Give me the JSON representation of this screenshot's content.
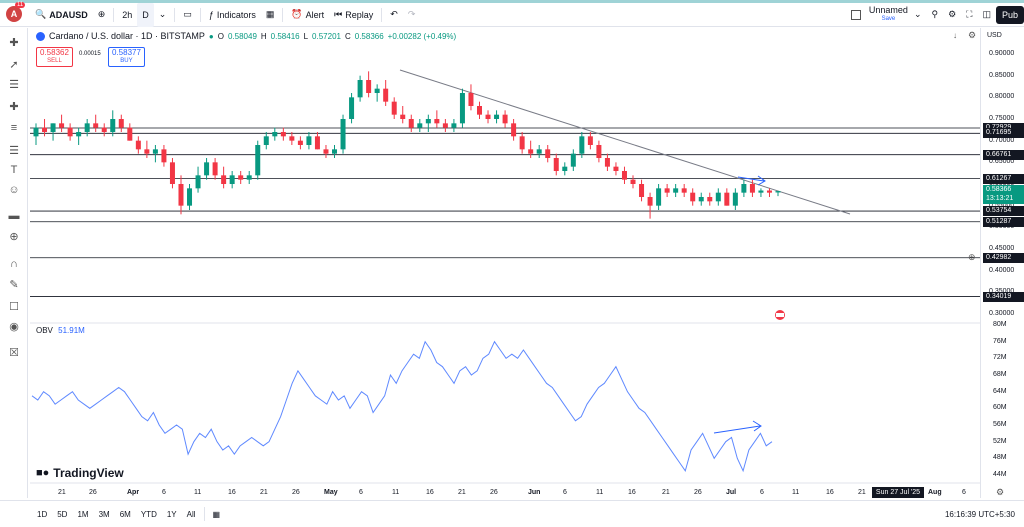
{
  "topbar": {
    "avatar_letter": "A",
    "badge": "11",
    "symbol": "ADAUSD",
    "interval_1": "2h",
    "interval_2": "D",
    "indicators": "Indicators",
    "alert": "Alert",
    "replay": "Replay",
    "layout_name": "Unnamed",
    "save_label": "Save",
    "publish": "Pub"
  },
  "legend": {
    "description": "Cardano / U.S. dollar · 1D · BITSTAMP",
    "o_label": "O",
    "o": "0.58049",
    "h_label": "H",
    "h": "0.58416",
    "l_label": "L",
    "l": "0.57201",
    "c_label": "C",
    "c": "0.58366",
    "change": "+0.00282 (+0.49%)"
  },
  "trade": {
    "sell_price": "0.58362",
    "sell_label": "SELL",
    "spread": "0.00015",
    "buy_price": "0.58377",
    "buy_label": "BUY"
  },
  "obv": {
    "label": "OBV",
    "value": "51.91M"
  },
  "branding": {
    "name": "TradingView"
  },
  "axis": {
    "currency": "USD",
    "price_ticks": [
      "0.90000",
      "0.85000",
      "0.80000",
      "0.75000",
      "0.70000",
      "0.65000",
      "0.60000",
      "0.55000",
      "0.50000",
      "0.45000",
      "0.40000",
      "0.35000",
      "0.30000"
    ],
    "obv_ticks": [
      "80M",
      "76M",
      "72M",
      "68M",
      "64M",
      "60M",
      "56M",
      "52M",
      "48M",
      "44M"
    ],
    "price_labels": [
      {
        "text": "0.72929",
        "kind": "level"
      },
      {
        "text": "0.71695",
        "kind": "level"
      },
      {
        "text": "0.66761",
        "kind": "level"
      },
      {
        "text": "0.61267",
        "kind": "level"
      },
      {
        "text": "0.58366",
        "kind": "last"
      },
      {
        "text": "13:13:21",
        "kind": "countdown"
      },
      {
        "text": "0.53754",
        "kind": "level"
      },
      {
        "text": "0.51287",
        "kind": "level"
      },
      {
        "text": "0.42982",
        "kind": "level"
      },
      {
        "text": "0.34019",
        "kind": "level"
      }
    ]
  },
  "xaxis": {
    "ticks": [
      "21",
      "26",
      "Apr",
      "6",
      "11",
      "16",
      "21",
      "26",
      "May",
      "6",
      "11",
      "16",
      "21",
      "26",
      "Jun",
      "6",
      "11",
      "16",
      "21",
      "26",
      "Jul",
      "6",
      "11",
      "16",
      "21",
      "26",
      "Aug",
      "6"
    ],
    "crosshair_date": "Sun 27 Jul '25"
  },
  "bottom": {
    "ranges": [
      "1D",
      "5D",
      "1M",
      "3M",
      "6M",
      "YTD",
      "1Y",
      "All"
    ],
    "clock": "16:16:39 UTC+5:30"
  },
  "colors": {
    "up": "#089981",
    "down": "#f23645",
    "obv": "#2962ff",
    "level": "#131722"
  },
  "chart_data": [
    {
      "type": "candlestick",
      "title": "Cardano / U.S. dollar · 1D · BITSTAMP",
      "ylabel": "USD",
      "ylim": [
        0.28,
        0.92
      ],
      "horizontal_levels": [
        0.72929,
        0.71695,
        0.66761,
        0.61267,
        0.53754,
        0.51287,
        0.42982,
        0.34019
      ],
      "trendline": [
        0.87,
        0.51
      ],
      "ohlc": [
        [
          0.71,
          0.74,
          0.69,
          0.73
        ],
        [
          0.73,
          0.75,
          0.71,
          0.72
        ],
        [
          0.72,
          0.74,
          0.7,
          0.74
        ],
        [
          0.74,
          0.76,
          0.72,
          0.73
        ],
        [
          0.73,
          0.74,
          0.7,
          0.71
        ],
        [
          0.71,
          0.73,
          0.69,
          0.72
        ],
        [
          0.72,
          0.75,
          0.71,
          0.74
        ],
        [
          0.74,
          0.76,
          0.72,
          0.73
        ],
        [
          0.73,
          0.74,
          0.71,
          0.72
        ],
        [
          0.72,
          0.77,
          0.71,
          0.75
        ],
        [
          0.75,
          0.76,
          0.72,
          0.73
        ],
        [
          0.73,
          0.74,
          0.7,
          0.7
        ],
        [
          0.7,
          0.71,
          0.67,
          0.68
        ],
        [
          0.68,
          0.7,
          0.66,
          0.67
        ],
        [
          0.67,
          0.69,
          0.65,
          0.68
        ],
        [
          0.68,
          0.69,
          0.64,
          0.65
        ],
        [
          0.65,
          0.66,
          0.59,
          0.6
        ],
        [
          0.6,
          0.62,
          0.53,
          0.55
        ],
        [
          0.55,
          0.6,
          0.54,
          0.59
        ],
        [
          0.59,
          0.64,
          0.58,
          0.62
        ],
        [
          0.62,
          0.66,
          0.61,
          0.65
        ],
        [
          0.65,
          0.66,
          0.61,
          0.62
        ],
        [
          0.62,
          0.64,
          0.59,
          0.6
        ],
        [
          0.6,
          0.63,
          0.59,
          0.62
        ],
        [
          0.62,
          0.63,
          0.6,
          0.61
        ],
        [
          0.61,
          0.63,
          0.6,
          0.62
        ],
        [
          0.62,
          0.7,
          0.61,
          0.69
        ],
        [
          0.69,
          0.72,
          0.68,
          0.71
        ],
        [
          0.71,
          0.73,
          0.7,
          0.72
        ],
        [
          0.72,
          0.73,
          0.7,
          0.71
        ],
        [
          0.71,
          0.72,
          0.69,
          0.7
        ],
        [
          0.7,
          0.71,
          0.68,
          0.69
        ],
        [
          0.69,
          0.72,
          0.68,
          0.71
        ],
        [
          0.71,
          0.72,
          0.68,
          0.68
        ],
        [
          0.68,
          0.69,
          0.66,
          0.67
        ],
        [
          0.67,
          0.69,
          0.66,
          0.68
        ],
        [
          0.68,
          0.76,
          0.67,
          0.75
        ],
        [
          0.75,
          0.81,
          0.74,
          0.8
        ],
        [
          0.8,
          0.85,
          0.79,
          0.84
        ],
        [
          0.84,
          0.86,
          0.8,
          0.81
        ],
        [
          0.81,
          0.83,
          0.79,
          0.82
        ],
        [
          0.82,
          0.84,
          0.78,
          0.79
        ],
        [
          0.79,
          0.8,
          0.75,
          0.76
        ],
        [
          0.76,
          0.78,
          0.74,
          0.75
        ],
        [
          0.75,
          0.76,
          0.72,
          0.73
        ],
        [
          0.73,
          0.75,
          0.72,
          0.74
        ],
        [
          0.74,
          0.76,
          0.72,
          0.75
        ],
        [
          0.75,
          0.77,
          0.73,
          0.74
        ],
        [
          0.74,
          0.75,
          0.72,
          0.73
        ],
        [
          0.73,
          0.75,
          0.72,
          0.74
        ],
        [
          0.74,
          0.82,
          0.73,
          0.81
        ],
        [
          0.81,
          0.83,
          0.77,
          0.78
        ],
        [
          0.78,
          0.79,
          0.75,
          0.76
        ],
        [
          0.76,
          0.77,
          0.74,
          0.75
        ],
        [
          0.75,
          0.77,
          0.74,
          0.76
        ],
        [
          0.76,
          0.77,
          0.73,
          0.74
        ],
        [
          0.74,
          0.75,
          0.7,
          0.71
        ],
        [
          0.71,
          0.72,
          0.67,
          0.68
        ],
        [
          0.68,
          0.7,
          0.66,
          0.67
        ],
        [
          0.67,
          0.69,
          0.66,
          0.68
        ],
        [
          0.68,
          0.69,
          0.65,
          0.66
        ],
        [
          0.66,
          0.67,
          0.62,
          0.63
        ],
        [
          0.63,
          0.65,
          0.62,
          0.64
        ],
        [
          0.64,
          0.68,
          0.63,
          0.67
        ],
        [
          0.67,
          0.72,
          0.66,
          0.71
        ],
        [
          0.71,
          0.72,
          0.68,
          0.69
        ],
        [
          0.69,
          0.7,
          0.65,
          0.66
        ],
        [
          0.66,
          0.67,
          0.63,
          0.64
        ],
        [
          0.64,
          0.65,
          0.62,
          0.63
        ],
        [
          0.63,
          0.64,
          0.6,
          0.61
        ],
        [
          0.61,
          0.62,
          0.59,
          0.6
        ],
        [
          0.6,
          0.61,
          0.56,
          0.57
        ],
        [
          0.57,
          0.58,
          0.52,
          0.55
        ],
        [
          0.55,
          0.6,
          0.54,
          0.59
        ],
        [
          0.59,
          0.6,
          0.57,
          0.58
        ],
        [
          0.58,
          0.6,
          0.57,
          0.59
        ],
        [
          0.59,
          0.6,
          0.57,
          0.58
        ],
        [
          0.58,
          0.59,
          0.55,
          0.56
        ],
        [
          0.56,
          0.58,
          0.55,
          0.57
        ],
        [
          0.57,
          0.58,
          0.55,
          0.56
        ],
        [
          0.56,
          0.59,
          0.55,
          0.58
        ],
        [
          0.58,
          0.59,
          0.55,
          0.55
        ],
        [
          0.55,
          0.59,
          0.54,
          0.58
        ],
        [
          0.58,
          0.61,
          0.57,
          0.6
        ],
        [
          0.6,
          0.61,
          0.57,
          0.58
        ],
        [
          0.58,
          0.59,
          0.57,
          0.585
        ],
        [
          0.585,
          0.59,
          0.57,
          0.58
        ],
        [
          0.58049,
          0.58416,
          0.57201,
          0.58366
        ]
      ]
    },
    {
      "type": "line",
      "title": "OBV",
      "ylabel": "",
      "ylim": [
        42,
        80
      ],
      "series": [
        {
          "name": "OBV",
          "values": [
            63,
            62,
            64,
            63,
            61,
            62,
            63,
            64,
            62,
            61,
            60,
            61,
            62,
            63,
            64,
            65,
            64,
            62,
            60,
            58,
            57,
            59,
            56,
            54,
            55,
            56,
            55,
            49,
            52,
            54,
            53,
            55,
            52,
            50,
            51,
            49,
            51,
            52,
            53,
            52,
            51,
            52,
            55,
            58,
            62,
            66,
            69,
            67,
            65,
            63,
            62,
            61,
            64,
            62,
            63,
            60,
            62,
            64,
            63,
            59,
            61,
            63,
            68,
            66,
            69,
            71,
            73,
            72,
            76,
            74,
            71,
            70,
            68,
            66,
            69,
            70,
            68,
            69,
            72,
            73,
            76,
            74,
            72,
            73,
            72,
            74,
            72,
            70,
            68,
            66,
            65,
            63,
            61,
            59,
            57,
            58,
            61,
            63,
            65,
            66,
            68,
            70,
            67,
            64,
            62,
            60,
            59,
            57,
            55,
            53,
            51,
            49,
            47,
            45,
            50,
            52,
            54,
            51,
            48,
            50,
            52,
            53,
            48,
            45,
            50,
            52,
            54,
            51,
            52
          ]
        }
      ]
    }
  ]
}
